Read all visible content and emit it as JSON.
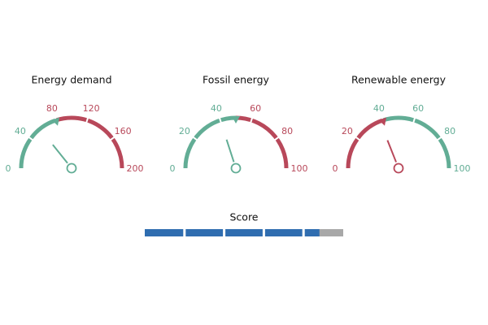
{
  "chart_data": [
    {
      "type": "gauge",
      "title": "Energy demand",
      "value": 57,
      "threshold": 80,
      "ylim": [
        0,
        200
      ],
      "yticks": [
        0,
        40,
        80,
        120,
        160,
        200
      ],
      "colors": [
        "#62ad95",
        "#b8485a"
      ]
    },
    {
      "type": "gauge",
      "title": "Fossil energy",
      "value": 40,
      "threshold": 50,
      "ylim": [
        0,
        100
      ],
      "yticks": [
        0,
        20,
        40,
        60,
        80,
        100
      ],
      "colors": [
        "#62ad95",
        "#b8485a"
      ]
    },
    {
      "type": "gauge",
      "title": "Renewable energy",
      "value": 38,
      "threshold": 40,
      "ylim": [
        0,
        100
      ],
      "yticks": [
        0,
        20,
        40,
        60,
        80,
        100
      ],
      "colors": [
        "#b8485a",
        "#62ad95"
      ]
    },
    {
      "type": "bar",
      "title": "Score",
      "values": [
        4.4
      ],
      "xlim": [
        0,
        5
      ],
      "xticks": [
        0,
        1,
        2,
        3,
        4,
        5
      ],
      "colors": [
        "#2f6db0",
        "#a8a8a8"
      ]
    }
  ]
}
